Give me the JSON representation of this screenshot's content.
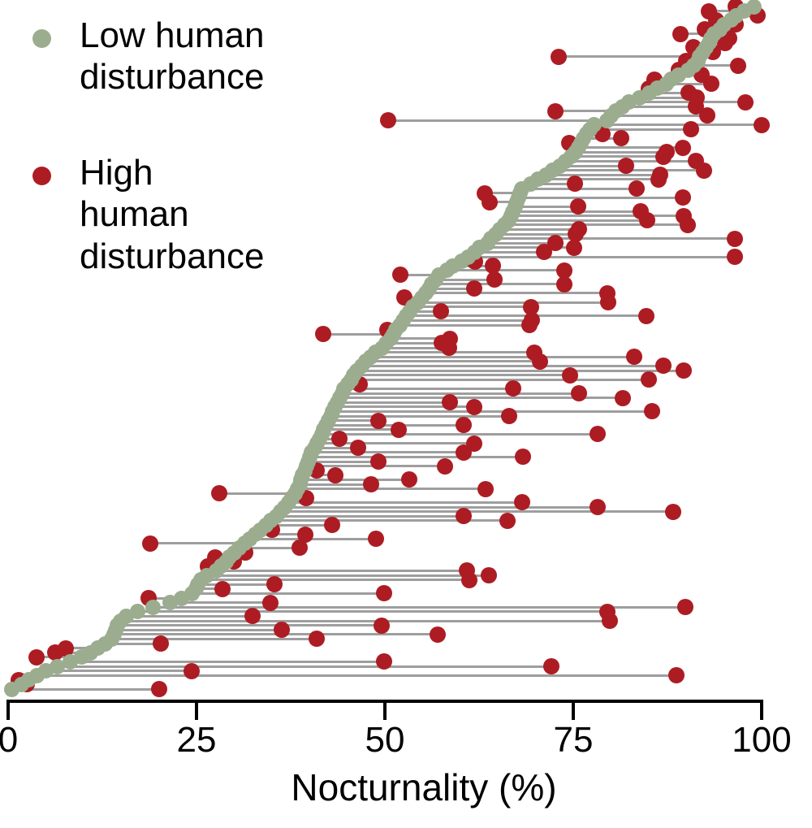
{
  "legend": {
    "items": [
      {
        "label": "Low human\ndisturbance",
        "color": "#9bad8e"
      },
      {
        "label": "High human\ndisturbance",
        "color": "#ad1c23"
      }
    ]
  },
  "chart_data": {
    "type": "scatter",
    "subtype": "dumbbell",
    "title": "",
    "xlabel": "Nocturnality (%)",
    "ylabel": "",
    "xlim": [
      0,
      100
    ],
    "x_ticks": [
      "0",
      "25",
      "50",
      "75",
      "100"
    ],
    "x_tick_values": [
      0,
      25,
      50,
      75,
      100
    ],
    "grid": false,
    "legend_position": "top-left",
    "colors": {
      "low": "#9bad8e",
      "high": "#ad1c23",
      "connector": "#9e9e9e",
      "axis": "#000000"
    },
    "row_format": [
      "low_disturbance_pct",
      "high_disturbance_pct"
    ],
    "row_order": "top_to_bottom_sorted_by_low_descending",
    "rows": [
      [
        99,
        96.5
      ],
      [
        97.7,
        93
      ],
      [
        96.6,
        99.5
      ],
      [
        96,
        94
      ],
      [
        95,
        96.5
      ],
      [
        94.4,
        92.5
      ],
      [
        93.7,
        89.2
      ],
      [
        93.3,
        95.7
      ],
      [
        93,
        95.2
      ],
      [
        92.6,
        91
      ],
      [
        92.2,
        93.5
      ],
      [
        91.8,
        73.1
      ],
      [
        91.5,
        90
      ],
      [
        91,
        96.9
      ],
      [
        90.3,
        89
      ],
      [
        89,
        92
      ],
      [
        88,
        85.8
      ],
      [
        87.3,
        93.3
      ],
      [
        86.2,
        85
      ],
      [
        85.1,
        90.3
      ],
      [
        83.8,
        91.4
      ],
      [
        82.4,
        97.8
      ],
      [
        81.5,
        91.3
      ],
      [
        80.7,
        72.6
      ],
      [
        80,
        92.8
      ],
      [
        79.5,
        50.4
      ],
      [
        77.8,
        100
      ],
      [
        77.2,
        90.6
      ],
      [
        76.8,
        78.9
      ],
      [
        76.4,
        81.4
      ],
      [
        76,
        74.5
      ],
      [
        75.7,
        89.5
      ],
      [
        75.3,
        87.4
      ],
      [
        74.7,
        87
      ],
      [
        74,
        91.3
      ],
      [
        73.2,
        82
      ],
      [
        72.3,
        92.4
      ],
      [
        71.4,
        86.5
      ],
      [
        70.3,
        86.3
      ],
      [
        69.3,
        75.2
      ],
      [
        68.2,
        83.4
      ],
      [
        67.9,
        63.3
      ],
      [
        67.7,
        89.5
      ],
      [
        67.5,
        63.9
      ],
      [
        67.3,
        75.7
      ],
      [
        67,
        83.9
      ],
      [
        66.8,
        89.7
      ],
      [
        66.4,
        84.8
      ],
      [
        65.9,
        90.2
      ],
      [
        65.2,
        75.8
      ],
      [
        64.7,
        75.3
      ],
      [
        64.1,
        96.4
      ],
      [
        63.6,
        72.6
      ],
      [
        62.5,
        75.1
      ],
      [
        61.9,
        71.1
      ],
      [
        61,
        96.4
      ],
      [
        60.2,
        62
      ],
      [
        59,
        64.3
      ],
      [
        58.2,
        73.8
      ],
      [
        57.2,
        52
      ],
      [
        56.7,
        64.5
      ],
      [
        56.2,
        73.8
      ],
      [
        55.9,
        61.8
      ],
      [
        55.4,
        79.5
      ],
      [
        54.9,
        52.6
      ],
      [
        54.4,
        79.6
      ],
      [
        53.7,
        69.4
      ],
      [
        53.3,
        57.4
      ],
      [
        52.9,
        84.7
      ],
      [
        52.4,
        69.5
      ],
      [
        52,
        69.2
      ],
      [
        51.5,
        50.3
      ],
      [
        51.1,
        41.8
      ],
      [
        50.8,
        58.6
      ],
      [
        50.2,
        57.5
      ],
      [
        49.6,
        58.5
      ],
      [
        48.8,
        69.8
      ],
      [
        48.1,
        83.1
      ],
      [
        47.5,
        70.6
      ],
      [
        46.9,
        87
      ],
      [
        46.3,
        89.7
      ],
      [
        45.9,
        74.6
      ],
      [
        45.5,
        85
      ],
      [
        45.1,
        46.7
      ],
      [
        44.6,
        67
      ],
      [
        44.3,
        75.8
      ],
      [
        44,
        81.6
      ],
      [
        43.7,
        58.6
      ],
      [
        43.4,
        61.8
      ],
      [
        43.1,
        85.5
      ],
      [
        42.8,
        66.5
      ],
      [
        42.5,
        49.1
      ],
      [
        42.2,
        60.4
      ],
      [
        41.9,
        51.8
      ],
      [
        41.6,
        78.2
      ],
      [
        41.3,
        44
      ],
      [
        41,
        61.8
      ],
      [
        40.7,
        46.4
      ],
      [
        40.3,
        60.4
      ],
      [
        40,
        68.3
      ],
      [
        39.8,
        49.1
      ],
      [
        39.6,
        58
      ],
      [
        39.4,
        41
      ],
      [
        39.1,
        43.4
      ],
      [
        38.9,
        53.2
      ],
      [
        38.7,
        48.2
      ],
      [
        38.4,
        63.4
      ],
      [
        38.1,
        28
      ],
      [
        37.7,
        39.6
      ],
      [
        37.2,
        68.2
      ],
      [
        36.7,
        78.2
      ],
      [
        36.1,
        88.3
      ],
      [
        35.6,
        60.4
      ],
      [
        34.9,
        66.3
      ],
      [
        34.2,
        43
      ],
      [
        33.5,
        35
      ],
      [
        32.8,
        39.4
      ],
      [
        32.1,
        48.8
      ],
      [
        31.4,
        18.9
      ],
      [
        30.7,
        38.7
      ],
      [
        30,
        31.5
      ],
      [
        29.4,
        27.5
      ],
      [
        28.9,
        30
      ],
      [
        28.3,
        26.5
      ],
      [
        27.6,
        60.9
      ],
      [
        26.4,
        63.8
      ],
      [
        25.6,
        61.2
      ],
      [
        25.2,
        35.3
      ],
      [
        24.9,
        28.4
      ],
      [
        24.4,
        49.9
      ],
      [
        23,
        18.6
      ],
      [
        21.5,
        34.8
      ],
      [
        19.2,
        89.9
      ],
      [
        17.2,
        79.5
      ],
      [
        15.7,
        32.4
      ],
      [
        14.9,
        79.8
      ],
      [
        14.5,
        49.6
      ],
      [
        14.3,
        36.3
      ],
      [
        14.1,
        57
      ],
      [
        13.7,
        41
      ],
      [
        12.9,
        20.3
      ],
      [
        11.9,
        7.6
      ],
      [
        10.9,
        6.3
      ],
      [
        9.8,
        3.8
      ],
      [
        8.2,
        49.9
      ],
      [
        6.5,
        72.1
      ],
      [
        5,
        24.3
      ],
      [
        3.8,
        88.7
      ],
      [
        2.8,
        1.4
      ],
      [
        1.8,
        2.5
      ],
      [
        0.5,
        20
      ]
    ]
  }
}
